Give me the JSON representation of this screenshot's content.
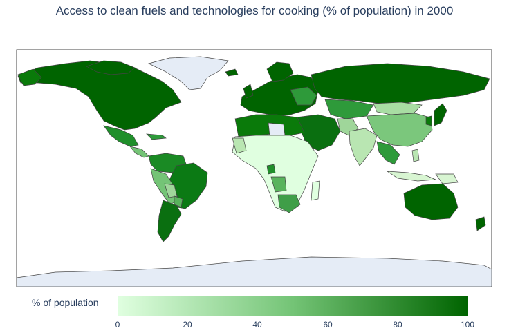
{
  "title": "Access to clean fuels and technologies for cooking (% of population) in 2000",
  "colorbar": {
    "label": "% of population",
    "ticks": [
      "0",
      "20",
      "40",
      "60",
      "80",
      "100"
    ],
    "range": [
      0,
      100
    ],
    "color_low": "#e0ffe0",
    "color_mid": "#74c476",
    "color_high": "#006400"
  },
  "colors": {
    "no_data": "#e5ecf6",
    "border": "#444444",
    "frame": "#444444"
  }
}
